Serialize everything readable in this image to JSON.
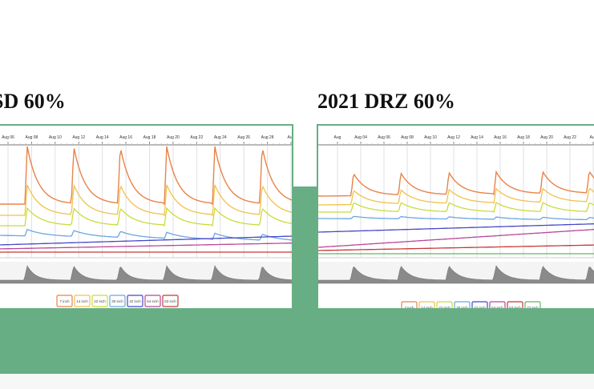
{
  "slides": [
    {
      "title": "SD 60%",
      "chart_data": {
        "type": "line",
        "x_ticks": [
          "Aug 06",
          "Aug 08",
          "Aug 10",
          "Aug 12",
          "Aug 14",
          "Aug 16",
          "Aug 18",
          "Aug 20",
          "Aug 22",
          "Aug 24",
          "Aug 26",
          "Aug 28",
          "Aug"
        ],
        "legend": [
          "7 inch",
          "14 inch",
          "22 inch",
          "30 inch",
          "42 inch",
          "54 inch",
          "63 inch"
        ],
        "legend_placement": "bottom",
        "grid": true,
        "colors": [
          "#e8834a",
          "#f0c24a",
          "#c8dc3c",
          "#6aa6e0",
          "#4848c8",
          "#b84898",
          "#c83838",
          "#63b463"
        ]
      }
    },
    {
      "title": "2021 DRZ 60%",
      "chart_data": {
        "type": "line",
        "x_ticks": [
          "Aug",
          "Aug 04",
          "Aug 06",
          "Aug 08",
          "Aug 10",
          "Aug 12",
          "Aug 14",
          "Aug 16",
          "Aug 18",
          "Aug 20",
          "Aug 22",
          "Aug"
        ],
        "legend": [
          "7 inch",
          "14 inch",
          "22 inch",
          "30 inch",
          "42 inch",
          "54 inch",
          "63 inch",
          "72 inch"
        ],
        "legend_placement": "bottom",
        "grid": true,
        "colors": [
          "#e8834a",
          "#f0c24a",
          "#c8dc3c",
          "#6aa6e0",
          "#4848c8",
          "#b84898",
          "#c83838",
          "#63b463"
        ]
      }
    }
  ]
}
